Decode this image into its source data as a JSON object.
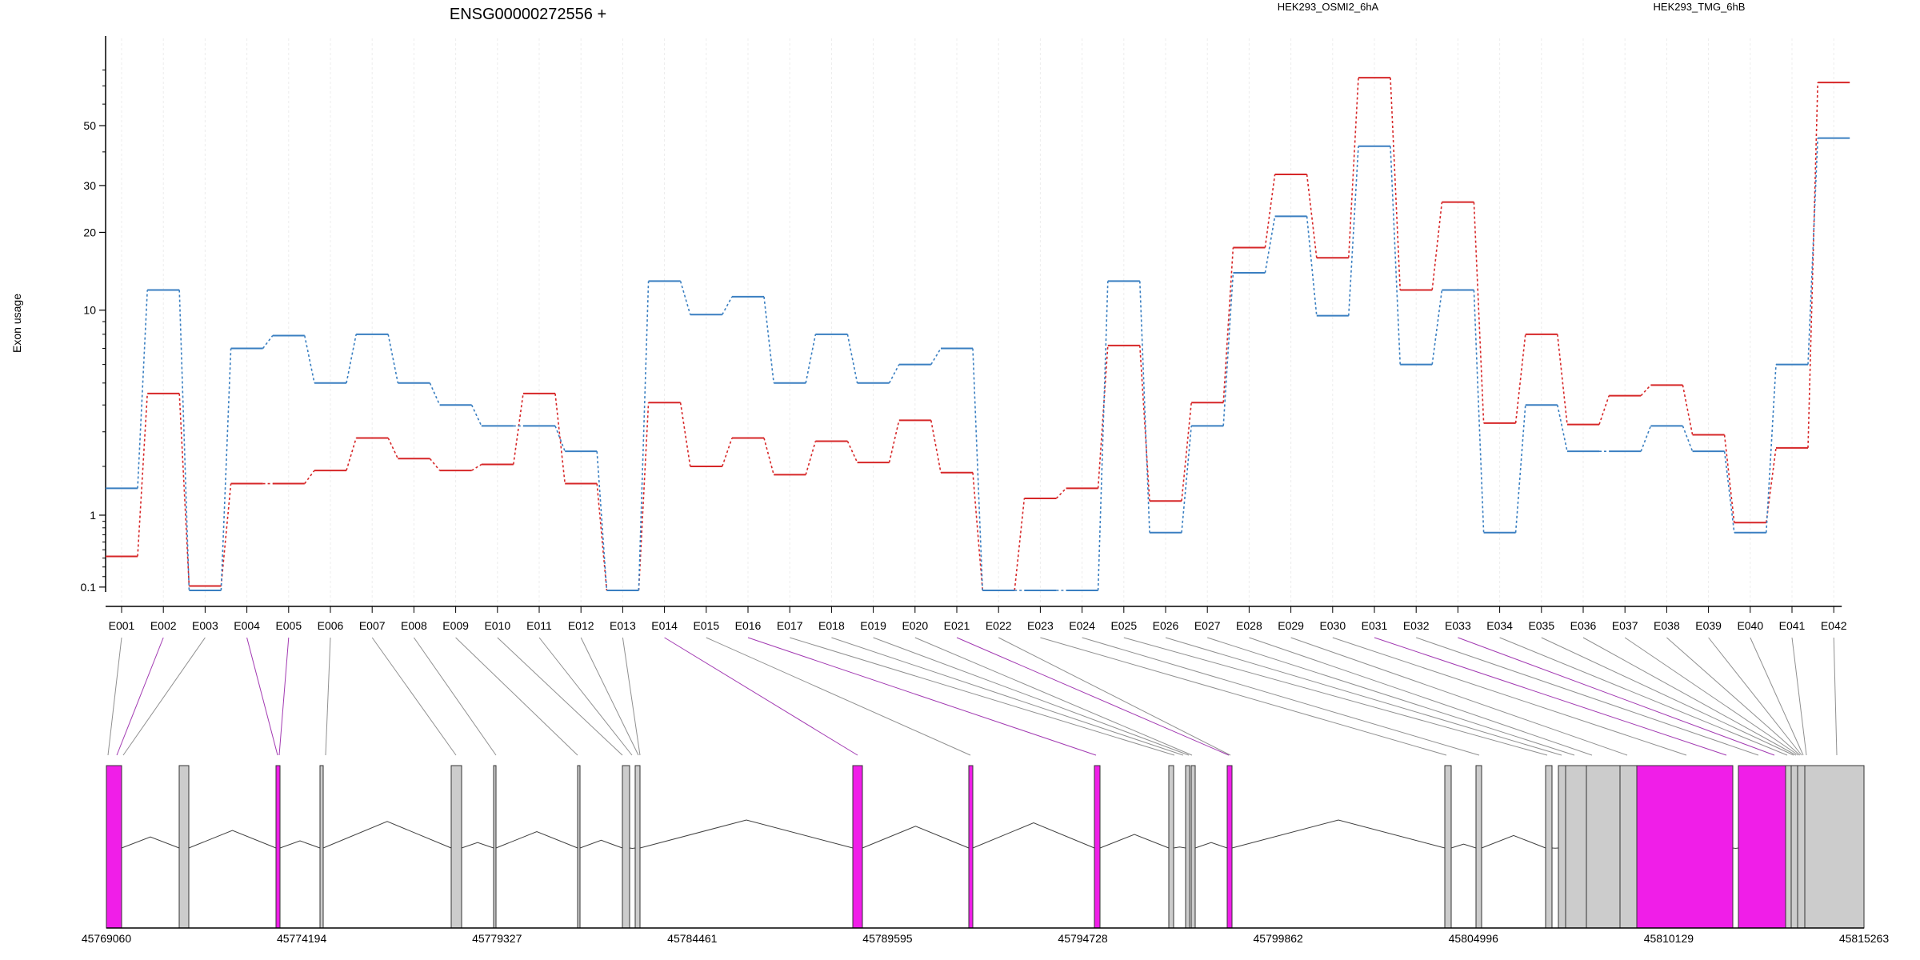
{
  "chart_data": {
    "type": "line",
    "title": "ENSG00000272556 +",
    "ylabel": "Exon usage",
    "y_scale": "log1p",
    "ylim": [
      0.07,
      90
    ],
    "y_ticks": [
      0.1,
      1,
      10,
      20,
      30,
      50
    ],
    "y_tick_labels": [
      "0.1",
      "1",
      "10",
      "20",
      "30",
      "50"
    ],
    "grid": true,
    "legend_position": "top",
    "categories": [
      "E001",
      "E002",
      "E003",
      "E004",
      "E005",
      "E006",
      "E007",
      "E008",
      "E009",
      "E010",
      "E011",
      "E012",
      "E013",
      "E014",
      "E015",
      "E016",
      "E017",
      "E018",
      "E019",
      "E020",
      "E021",
      "E022",
      "E023",
      "E024",
      "E025",
      "E026",
      "E027",
      "E028",
      "E029",
      "E030",
      "E031",
      "E032",
      "E033",
      "E034",
      "E035",
      "E036",
      "E037",
      "E038",
      "E039",
      "E040",
      "E041",
      "E042"
    ],
    "series": [
      {
        "name": "HEK293_OSMI2_6hA",
        "color": "#d62728",
        "values": [
          0.42,
          4.5,
          0.11,
          1.6,
          1.6,
          1.9,
          2.8,
          2.2,
          1.9,
          2.05,
          4.5,
          1.6,
          0.07,
          4.1,
          2.0,
          2.8,
          1.8,
          2.7,
          2.1,
          3.4,
          1.85,
          0.07,
          1.3,
          1.5,
          7.2,
          1.25,
          4.1,
          17.5,
          33,
          16,
          75,
          12,
          26,
          3.3,
          8.0,
          3.25,
          4.4,
          4.9,
          2.9,
          0.88,
          2.5,
          72
        ]
      },
      {
        "name": "HEK293_TMG_6hB",
        "color": "#3a7fc1",
        "values": [
          1.5,
          12,
          0.07,
          7.0,
          7.9,
          5.0,
          8.0,
          5.0,
          4.0,
          3.2,
          3.2,
          2.4,
          0.07,
          13,
          9.6,
          11.3,
          5.0,
          8.0,
          5.0,
          6.0,
          7.0,
          0.07,
          0.07,
          0.07,
          13,
          0.73,
          3.2,
          14,
          23,
          9.5,
          42,
          6.0,
          12,
          0.73,
          4.0,
          2.4,
          2.4,
          3.2,
          2.4,
          0.73,
          6.0,
          45
        ]
      }
    ]
  },
  "genomic_axis": {
    "tick_labels": [
      "45769060",
      "45774194",
      "45779327",
      "45784461",
      "45789595",
      "45794728",
      "45799862",
      "45804996",
      "45810129",
      "45815263"
    ]
  },
  "exon_colors": {
    "significant": "#f01ee8",
    "normal": "#cccccc",
    "connector_normal": "#909090",
    "connector_significant": "#a23ab2"
  }
}
